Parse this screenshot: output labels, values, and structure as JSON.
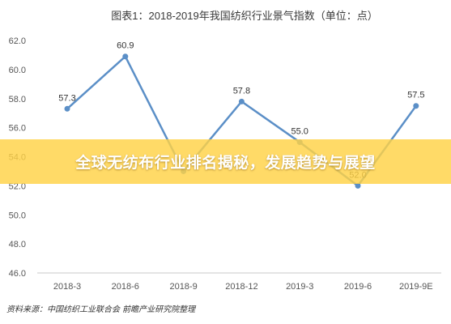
{
  "chart_data": {
    "type": "line",
    "title": "图表1：2018-2019年我国纺织行业景气指数（单位：点）",
    "categories": [
      "2018-3",
      "2018-6",
      "2018-9",
      "2018-12",
      "2019-3",
      "2019-6",
      "2019-9E"
    ],
    "values": [
      57.3,
      60.9,
      53.0,
      57.8,
      55.0,
      52.0,
      57.5
    ],
    "data_labels": [
      "57.3",
      "60.9",
      "",
      "57.8",
      "55.0",
      "52.0",
      "57.5"
    ],
    "yticks": [
      "62.0",
      "60.0",
      "58.0",
      "56.0",
      "54.0",
      "52.0",
      "50.0",
      "48.0",
      "46.0"
    ],
    "ylim": [
      46,
      62
    ],
    "xlabel": "",
    "ylabel": "",
    "grid": false,
    "line_color": "#5b8fc7",
    "marker_color": "#5b8fc7"
  },
  "banner": {
    "text": "全球无纺布行业排名揭秘，发展趋势与展望",
    "color": "#ffd246"
  },
  "source": "资料来源：中国纺织工业联合会 前瞻产业研究院整理"
}
